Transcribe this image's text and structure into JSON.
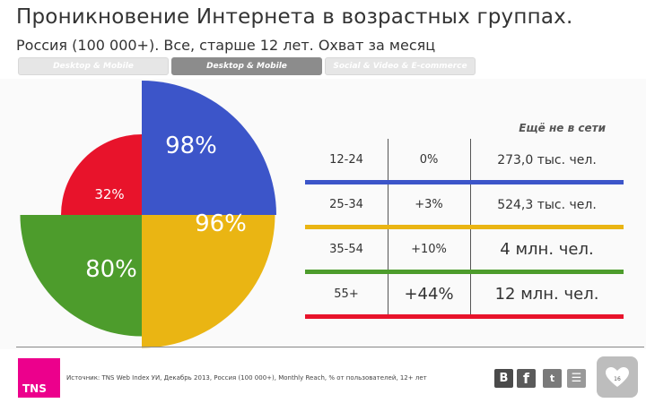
{
  "header": {
    "title": "Проникновение Интернета в возрастных группах.",
    "subtitle": "Россия (100 000+). Все, старше 12 лет. Охват за месяц"
  },
  "tabs": [
    {
      "label": "Desktop & Mobile",
      "active": false
    },
    {
      "label": "Desktop & Mobile",
      "active": true
    },
    {
      "label": "Social & Video & E-commerce",
      "active": false
    }
  ],
  "chart_data": {
    "type": "pie",
    "variant": "polar-area",
    "segments": [
      {
        "label": "98%",
        "value": 98,
        "color": "#3c55c9"
      },
      {
        "label": "96%",
        "value": 96,
        "color": "#eab513"
      },
      {
        "label": "80%",
        "value": 80,
        "color": "#4d9c2c"
      },
      {
        "label": "32%",
        "value": 32,
        "color": "#e8132b"
      }
    ]
  },
  "table": {
    "header": "Ещё не в сети",
    "rows": [
      {
        "age": "12-24",
        "growth": "0%",
        "offline": "273,0 тыс. чел.",
        "color": "#3c55c9"
      },
      {
        "age": "25-34",
        "growth": "+3%",
        "offline": "524,3 тыс. чел.",
        "color": "#eab513"
      },
      {
        "age": "35-54",
        "growth": "+10%",
        "offline": "4 млн. чел.",
        "color": "#4d9c2c"
      },
      {
        "age": "55+",
        "growth": "+44%",
        "offline": "12 млн. чел.",
        "color": "#e8132b"
      }
    ]
  },
  "footer": {
    "logo": "TNS",
    "source": "Источник: TNS Web Index УИ, Декабрь 2013, Россия (100 000+), Monthly Reach, % от пользователей, 12+ лет",
    "social": {
      "vk": "B",
      "fb": "f",
      "tw": "t",
      "rss": "☰"
    },
    "page_number": "16"
  }
}
